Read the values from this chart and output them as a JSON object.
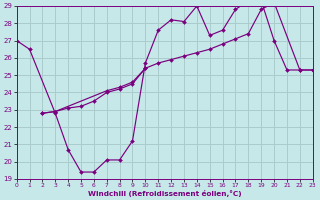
{
  "xlabel": "Windchill (Refroidissement éolien,°C)",
  "xlim": [
    0,
    23
  ],
  "ylim": [
    19,
    29
  ],
  "xticks": [
    0,
    1,
    2,
    3,
    4,
    5,
    6,
    7,
    8,
    9,
    10,
    11,
    12,
    13,
    14,
    15,
    16,
    17,
    18,
    19,
    20,
    21,
    22,
    23
  ],
  "yticks": [
    19,
    20,
    21,
    22,
    23,
    24,
    25,
    26,
    27,
    28,
    29
  ],
  "background_color": "#c6e8e8",
  "grid_color": "#aacccc",
  "line_color": "#7b0080",
  "line1_x": [
    0,
    1,
    3,
    4,
    5,
    6,
    7,
    8,
    9,
    10,
    11,
    12,
    13,
    14,
    15,
    16,
    17,
    18,
    19,
    20,
    21,
    22,
    23
  ],
  "line1_y": [
    27.0,
    26.5,
    22.8,
    20.7,
    19.4,
    19.4,
    20.1,
    20.1,
    21.2,
    25.7,
    27.6,
    28.2,
    28.1,
    29.0,
    27.3,
    27.6,
    28.8,
    29.3,
    29.3,
    27.0,
    25.3,
    25.3,
    25.3
  ],
  "line2_x": [
    2,
    3,
    7,
    8,
    9,
    10,
    11,
    12,
    13,
    14,
    15,
    16,
    17,
    18,
    19,
    20,
    22,
    23
  ],
  "line2_y": [
    22.8,
    22.9,
    24.1,
    24.3,
    24.6,
    25.4,
    25.7,
    25.9,
    26.1,
    26.3,
    26.5,
    26.8,
    27.1,
    27.4,
    28.8,
    29.2,
    25.3,
    25.3
  ],
  "line3_x": [
    2,
    3,
    4,
    5,
    6,
    7,
    8,
    9,
    10
  ],
  "line3_y": [
    22.8,
    22.9,
    23.1,
    23.2,
    23.5,
    24.0,
    24.2,
    24.5,
    25.4
  ]
}
